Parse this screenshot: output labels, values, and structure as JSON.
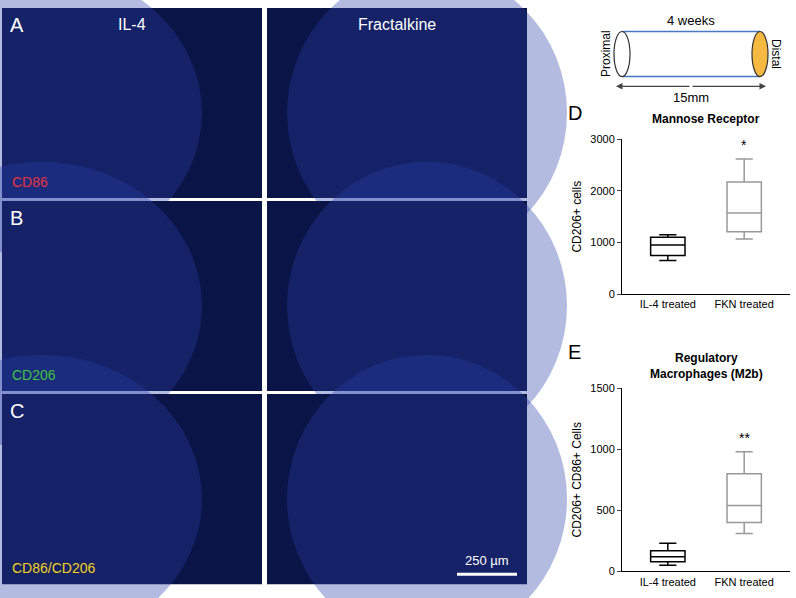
{
  "micrographs": {
    "columns": [
      "IL-4",
      "Fractalkine"
    ],
    "rows": [
      {
        "panel": "A",
        "stain": "CD86",
        "color": "#e8333a"
      },
      {
        "panel": "B",
        "stain": "CD206",
        "color": "#3ec43e"
      },
      {
        "panel": "C",
        "stain": "CD86/CD206",
        "color": "#f2d21b"
      }
    ],
    "scale_bar": "250 µm"
  },
  "schematic": {
    "duration": "4 weeks",
    "left": "Proximal",
    "right": "Distal",
    "length": "15mm"
  },
  "chart_data": [
    {
      "type": "box",
      "panel": "D",
      "title": "Mannose Receptor",
      "y_label": "CD206+ cells",
      "categories": [
        "IL-4 treated",
        "FKN treated"
      ],
      "min": [
        650,
        1070
      ],
      "q1": [
        750,
        1210
      ],
      "median": [
        950,
        1570
      ],
      "q3": [
        1100,
        2170
      ],
      "max": [
        1150,
        2620
      ],
      "colors": [
        "#000000",
        "#999999"
      ],
      "annotations": [
        {
          "category": "FKN treated",
          "text": "*"
        }
      ],
      "ylim": [
        0,
        3000
      ],
      "yticks": [
        0,
        1000,
        2000,
        3000
      ],
      "grid": false
    },
    {
      "type": "box",
      "panel": "E",
      "title": "Regulatory\nMacrophages (M2b)",
      "y_label": "CD206+ CD86+ Cells",
      "categories": [
        "IL-4 treated",
        "FKN treated"
      ],
      "min": [
        50,
        310
      ],
      "q1": [
        80,
        400
      ],
      "median": [
        120,
        540
      ],
      "q3": [
        170,
        800
      ],
      "max": [
        230,
        980
      ],
      "colors": [
        "#000000",
        "#999999"
      ],
      "annotations": [
        {
          "category": "FKN treated",
          "text": "**"
        }
      ],
      "ylim": [
        0,
        1500
      ],
      "yticks": [
        0,
        500,
        1000,
        1500
      ],
      "grid": false
    }
  ]
}
